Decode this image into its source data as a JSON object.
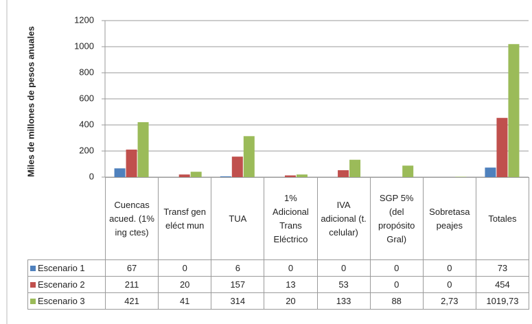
{
  "chart_data": {
    "type": "bar",
    "y_label": "Miles de millones de pesos anuales",
    "categories": [
      "Cuencas acued. (1% ing ctes)",
      "Transf gen eléct mun",
      "TUA",
      "1% Adicional Trans Eléctrico",
      "IVA adicional (t. celular)",
      "SGP 5% (del propósito Gral)",
      "Sobretasa peajes",
      "Totales"
    ],
    "series": [
      {
        "name": "Escenario 1",
        "color": "#4f81bd",
        "values": [
          67,
          0,
          6,
          0,
          0,
          0,
          0,
          73
        ]
      },
      {
        "name": "Escenario 2",
        "color": "#c0504d",
        "values": [
          211,
          20,
          157,
          13,
          53,
          0,
          0,
          454
        ]
      },
      {
        "name": "Escenario 3",
        "color": "#9bbb59",
        "values": [
          421,
          41,
          314,
          20,
          133,
          88,
          2.73,
          1019.73
        ],
        "value_labels": [
          "421",
          "41",
          "314",
          "20",
          "133",
          "88",
          "2,73",
          "1019,73"
        ]
      }
    ],
    "ylim": [
      0,
      1200
    ],
    "yticks": [
      0,
      200,
      400,
      600,
      800,
      1000,
      1200
    ],
    "grid": true
  }
}
